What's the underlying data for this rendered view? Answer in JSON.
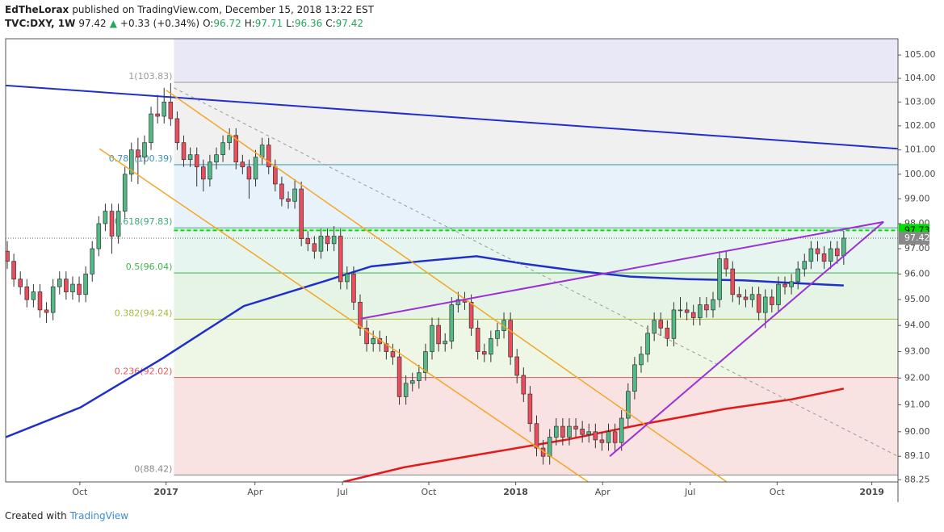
{
  "header": {
    "author": "EdTheLorax",
    "published": "published on TradingView.com, December 15, 2018 13:22 EST",
    "symbol": "TVC:DXY, 1W",
    "last": 97.42,
    "change": "+0.33 (+0.34%)",
    "ohlc": [
      {
        "label": "O:",
        "value": 96.72
      },
      {
        "label": "H:",
        "value": 97.71
      },
      {
        "label": "L:",
        "value": 96.36
      },
      {
        "label": "C:",
        "value": 97.42
      }
    ]
  },
  "footer": {
    "text": "Created with",
    "brand": "TradingView"
  },
  "chart_data": {
    "type": "candlestick",
    "log_scale": true,
    "up_color": "#53b987",
    "down_color": "#eb4d5c",
    "ylim": [
      88.17,
      105.7
    ],
    "yticks": [
      {
        "value": 105,
        "label": "105.00"
      },
      {
        "value": 104,
        "label": "104.00"
      },
      {
        "value": 103,
        "label": "103.00"
      },
      {
        "value": 102,
        "label": "102.00"
      },
      {
        "value": 101,
        "label": "101.00"
      },
      {
        "value": 100,
        "label": "100.00"
      },
      {
        "value": 99,
        "label": "99.00"
      },
      {
        "value": 98,
        "label": "98.00"
      },
      {
        "value": 97,
        "label": "97.00"
      },
      {
        "value": 96,
        "label": "96.00"
      },
      {
        "value": 95,
        "label": "95.00"
      },
      {
        "value": 94,
        "label": "94.00"
      },
      {
        "value": 93,
        "label": "93.00"
      },
      {
        "value": 92,
        "label": "92.00"
      },
      {
        "value": 91,
        "label": "91.00"
      },
      {
        "value": 90,
        "label": "90.00"
      },
      {
        "value": 89.1,
        "label": "89.10"
      },
      {
        "value": 88.25,
        "label": "88.25"
      }
    ],
    "xlim": [
      -0.25,
      136.3
    ],
    "xticks": [
      {
        "value": 11.1,
        "label": "Oct"
      },
      {
        "value": 24.3,
        "label": "2017"
      },
      {
        "value": 37.9,
        "label": "Apr"
      },
      {
        "value": 51.3,
        "label": "Jul"
      },
      {
        "value": 64.5,
        "label": "Oct"
      },
      {
        "value": 77.8,
        "label": "2018"
      },
      {
        "value": 91.1,
        "label": "Apr"
      },
      {
        "value": 104.5,
        "label": "Jul"
      },
      {
        "value": 117.8,
        "label": "Oct"
      },
      {
        "value": 132.3,
        "label": "2019"
      }
    ],
    "candles": [
      [
        96.9,
        97.3,
        96.2,
        96.5
      ],
      [
        96.5,
        96.8,
        95.5,
        95.8
      ],
      [
        95.8,
        96.1,
        95.2,
        95.5
      ],
      [
        95.5,
        95.8,
        94.7,
        95.0
      ],
      [
        95.0,
        95.6,
        94.7,
        95.3
      ],
      [
        95.3,
        95.6,
        94.3,
        94.6
      ],
      [
        94.6,
        94.9,
        94.1,
        94.5
      ],
      [
        94.5,
        95.8,
        94.2,
        95.5
      ],
      [
        95.5,
        96.1,
        95.2,
        95.8
      ],
      [
        95.8,
        96.1,
        95.0,
        95.3
      ],
      [
        95.3,
        95.9,
        95.0,
        95.6
      ],
      [
        95.6,
        95.9,
        94.9,
        95.2
      ],
      [
        95.2,
        96.3,
        94.9,
        96.0
      ],
      [
        96.0,
        97.3,
        95.7,
        97.0
      ],
      [
        97.0,
        98.3,
        96.7,
        98.0
      ],
      [
        98.0,
        98.8,
        97.7,
        98.5
      ],
      [
        98.5,
        98.8,
        96.8,
        97.5
      ],
      [
        97.5,
        98.8,
        97.2,
        98.5
      ],
      [
        98.5,
        100.3,
        98.2,
        100.0
      ],
      [
        100.0,
        101.3,
        99.7,
        101.0
      ],
      [
        101.0,
        101.5,
        99.6,
        100.7
      ],
      [
        100.7,
        101.6,
        100.4,
        101.3
      ],
      [
        101.3,
        102.8,
        101.0,
        102.5
      ],
      [
        102.5,
        103.3,
        102.1,
        102.4
      ],
      [
        102.4,
        103.6,
        102.1,
        103.0
      ],
      [
        103.0,
        103.8,
        102.0,
        102.3
      ],
      [
        102.3,
        102.6,
        101.0,
        101.3
      ],
      [
        101.3,
        101.6,
        100.3,
        100.6
      ],
      [
        100.6,
        101.1,
        100.3,
        100.8
      ],
      [
        100.8,
        101.1,
        99.5,
        100.3
      ],
      [
        100.3,
        100.6,
        99.3,
        99.8
      ],
      [
        99.8,
        100.8,
        99.5,
        100.5
      ],
      [
        100.5,
        101.1,
        100.2,
        100.8
      ],
      [
        100.8,
        101.6,
        100.5,
        101.3
      ],
      [
        101.3,
        101.9,
        101.0,
        101.6
      ],
      [
        101.6,
        101.9,
        100.2,
        100.5
      ],
      [
        100.5,
        100.8,
        100.0,
        100.3
      ],
      [
        100.3,
        100.6,
        99.0,
        99.8
      ],
      [
        99.8,
        101.0,
        99.5,
        100.7
      ],
      [
        100.7,
        101.5,
        100.4,
        101.2
      ],
      [
        101.2,
        101.5,
        100.0,
        100.3
      ],
      [
        100.3,
        100.6,
        99.3,
        99.6
      ],
      [
        99.6,
        99.9,
        98.7,
        99.0
      ],
      [
        99.0,
        99.3,
        98.6,
        98.9
      ],
      [
        98.9,
        99.8,
        98.6,
        99.4
      ],
      [
        99.4,
        99.7,
        97.1,
        97.4
      ],
      [
        97.4,
        97.7,
        96.9,
        97.2
      ],
      [
        97.2,
        97.5,
        96.6,
        96.9
      ],
      [
        96.9,
        97.8,
        96.6,
        97.5
      ],
      [
        97.5,
        97.8,
        96.9,
        97.2
      ],
      [
        97.2,
        97.9,
        96.9,
        97.5
      ],
      [
        97.5,
        97.8,
        95.4,
        95.7
      ],
      [
        95.7,
        96.3,
        95.4,
        96.0
      ],
      [
        96.0,
        96.3,
        94.6,
        94.9
      ],
      [
        94.9,
        95.2,
        93.6,
        93.9
      ],
      [
        93.9,
        94.2,
        93.0,
        93.3
      ],
      [
        93.3,
        93.8,
        93.0,
        93.5
      ],
      [
        93.5,
        93.8,
        93.0,
        93.3
      ],
      [
        93.3,
        93.6,
        92.7,
        93.0
      ],
      [
        93.0,
        93.3,
        92.5,
        92.8
      ],
      [
        92.8,
        93.1,
        91.0,
        91.3
      ],
      [
        91.3,
        92.1,
        91.0,
        91.8
      ],
      [
        91.8,
        92.2,
        91.5,
        91.9
      ],
      [
        91.9,
        92.5,
        91.6,
        92.2
      ],
      [
        92.2,
        93.3,
        91.9,
        93.0
      ],
      [
        93.0,
        94.3,
        92.7,
        94.0
      ],
      [
        94.0,
        94.3,
        93.0,
        93.3
      ],
      [
        93.3,
        93.7,
        93.0,
        93.4
      ],
      [
        93.4,
        95.1,
        93.1,
        94.8
      ],
      [
        94.8,
        95.3,
        94.5,
        95.0
      ],
      [
        95.0,
        95.3,
        94.6,
        94.9
      ],
      [
        94.9,
        95.2,
        93.6,
        93.9
      ],
      [
        93.9,
        94.2,
        92.7,
        93.0
      ],
      [
        93.0,
        93.3,
        92.6,
        92.9
      ],
      [
        92.9,
        93.8,
        92.6,
        93.5
      ],
      [
        93.5,
        94.1,
        93.2,
        93.8
      ],
      [
        93.8,
        94.5,
        93.5,
        94.2
      ],
      [
        94.2,
        94.5,
        92.5,
        92.8
      ],
      [
        92.8,
        93.1,
        91.8,
        92.1
      ],
      [
        92.1,
        92.4,
        91.1,
        91.4
      ],
      [
        91.4,
        91.7,
        90.0,
        90.3
      ],
      [
        90.3,
        90.6,
        89.1,
        89.4
      ],
      [
        89.4,
        89.7,
        88.8,
        89.1
      ],
      [
        89.1,
        90.1,
        88.8,
        89.8
      ],
      [
        89.8,
        90.5,
        89.5,
        90.2
      ],
      [
        90.2,
        90.5,
        89.5,
        89.8
      ],
      [
        89.8,
        90.5,
        89.5,
        90.2
      ],
      [
        90.2,
        90.5,
        89.8,
        90.1
      ],
      [
        90.1,
        90.4,
        89.6,
        89.9
      ],
      [
        89.9,
        90.3,
        89.6,
        90.0
      ],
      [
        90.0,
        90.3,
        89.4,
        89.7
      ],
      [
        89.7,
        90.0,
        89.3,
        89.6
      ],
      [
        89.6,
        90.3,
        89.3,
        90.0
      ],
      [
        90.0,
        90.3,
        89.3,
        89.6
      ],
      [
        89.6,
        90.8,
        89.3,
        90.5
      ],
      [
        90.5,
        91.8,
        90.2,
        91.5
      ],
      [
        91.5,
        92.8,
        91.2,
        92.5
      ],
      [
        92.5,
        93.2,
        92.2,
        92.9
      ],
      [
        92.9,
        94.0,
        92.6,
        93.7
      ],
      [
        93.7,
        94.5,
        93.4,
        94.2
      ],
      [
        94.2,
        94.5,
        93.6,
        93.9
      ],
      [
        93.9,
        94.2,
        93.2,
        93.5
      ],
      [
        93.5,
        94.9,
        93.2,
        94.6
      ],
      [
        94.6,
        95.1,
        94.3,
        94.6
      ],
      [
        94.6,
        94.9,
        94.2,
        94.5
      ],
      [
        94.5,
        94.8,
        94.0,
        94.3
      ],
      [
        94.3,
        95.1,
        94.0,
        94.8
      ],
      [
        94.8,
        95.1,
        94.3,
        94.6
      ],
      [
        94.6,
        95.3,
        94.3,
        95.0
      ],
      [
        95.0,
        96.9,
        94.7,
        96.6
      ],
      [
        96.6,
        96.9,
        95.9,
        96.2
      ],
      [
        96.2,
        96.5,
        94.9,
        95.2
      ],
      [
        95.2,
        95.5,
        94.8,
        95.1
      ],
      [
        95.1,
        95.4,
        94.7,
        95.0
      ],
      [
        95.0,
        95.5,
        94.7,
        95.2
      ],
      [
        95.2,
        95.5,
        94.2,
        94.5
      ],
      [
        94.5,
        95.4,
        93.9,
        95.1
      ],
      [
        95.1,
        95.4,
        94.5,
        94.8
      ],
      [
        94.8,
        95.9,
        94.5,
        95.6
      ],
      [
        95.6,
        95.9,
        95.2,
        95.5
      ],
      [
        95.5,
        96.0,
        95.2,
        95.7
      ],
      [
        95.7,
        96.5,
        95.4,
        96.2
      ],
      [
        96.2,
        96.8,
        95.9,
        96.5
      ],
      [
        96.5,
        97.3,
        96.2,
        97.0
      ],
      [
        97.0,
        97.3,
        96.5,
        96.8
      ],
      [
        96.8,
        97.1,
        96.2,
        96.5
      ],
      [
        96.5,
        97.3,
        96.2,
        97.0
      ],
      [
        97.0,
        97.3,
        96.4,
        96.72
      ],
      [
        96.72,
        97.71,
        96.36,
        97.42
      ]
    ],
    "fib_start": 25.5,
    "fib": [
      {
        "label": "0(88.42)",
        "value": 88.42,
        "color": "#888888",
        "fill": "#f9e2e2"
      },
      {
        "label": "0.236(92.02)",
        "value": 92.02,
        "color": "#e05a5a",
        "fill": "#eef6e6"
      },
      {
        "label": "0.382(94.24)",
        "value": 94.24,
        "color": "#a8b840",
        "fill": "#e6f4e6"
      },
      {
        "label": "0.5(96.04)",
        "value": 96.04,
        "color": "#3cb34a",
        "fill": "#e6f5f0"
      },
      {
        "label": "0.618(97.83)",
        "value": 97.83,
        "color": "#3aaa7a",
        "fill": "#e8f2fa"
      },
      {
        "label": "0.786(100.39)",
        "value": 100.39,
        "color": "#3a8fb8",
        "fill": "#f0f0f0"
      },
      {
        "label": "1(103.83)",
        "value": 103.83,
        "color": "#999999",
        "fill": "#e8e8f6"
      }
    ],
    "ma_lines": [
      {
        "color": "#1f2fcc",
        "x": [
          -0.25,
          11.2,
          23.6,
          36.2,
          48.3,
          55.7,
          63.2,
          71.8,
          79.2,
          87.9,
          95.3,
          104,
          112.6,
          120,
          128
        ],
        "values": [
          89.8,
          90.9,
          92.72,
          94.75,
          95.7,
          96.3,
          96.5,
          96.7,
          96.4,
          96.1,
          95.9,
          95.8,
          95.75,
          95.65,
          95.55
        ]
      },
      {
        "color": "#e31a1a",
        "x": [
          51.4,
          60.7,
          73,
          85.4,
          97.7,
          110,
          120,
          128
        ],
        "values": [
          88.17,
          88.7,
          89.2,
          89.7,
          90.3,
          90.85,
          91.2,
          91.6
        ]
      }
    ],
    "trendlines": [
      {
        "color": "#1f2fcc",
        "width": 2,
        "x": [
          -0.25,
          136.3
        ],
        "values": [
          103.7,
          101.05
        ]
      },
      {
        "color": "#f5a623",
        "width": 1.5,
        "x": [
          24.3,
          110.1
        ],
        "values": [
          103.5,
          88.17
        ]
      },
      {
        "color": "#f5a623",
        "width": 1.5,
        "x": [
          14.1,
          88.9
        ],
        "values": [
          101.05,
          88.17
        ]
      },
      {
        "color": "#999999",
        "width": 1,
        "dash": true,
        "x": [
          25.5,
          136.3
        ],
        "values": [
          103.6,
          89.1
        ]
      },
      {
        "color": "#9b30d9",
        "width": 2,
        "x": [
          54.1,
          134.1
        ],
        "values": [
          94.26,
          98.07
        ]
      },
      {
        "color": "#9b30d9",
        "width": 2,
        "x": [
          92.2,
          134.1
        ],
        "values": [
          89.1,
          98.07
        ]
      }
    ],
    "hline": {
      "value": 97.73,
      "color": "#00dd00"
    },
    "last_price": {
      "value": 97.42,
      "color": "#888888"
    }
  }
}
